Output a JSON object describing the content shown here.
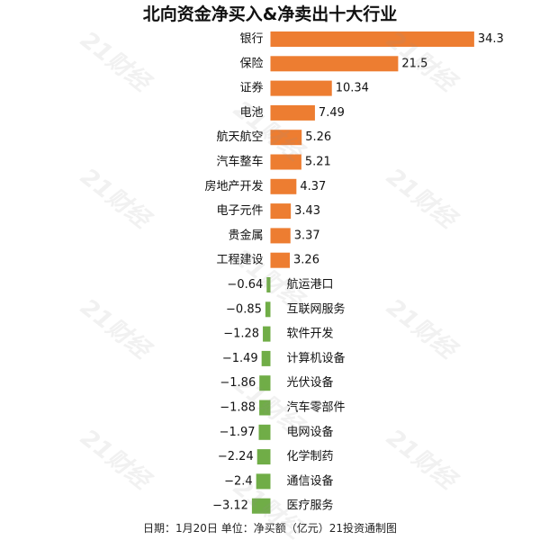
{
  "chart_data": {
    "type": "bar",
    "orientation": "horizontal",
    "title": "北向资金净买入&净卖出十大行业",
    "footer": "日期：1月20日 单位：净买额（亿元）21投资通制图",
    "watermark": "21财经",
    "xlabel": "",
    "ylabel": "",
    "grid": false,
    "legend": "none",
    "xlim": [
      -3.12,
      34.3
    ],
    "categories": [
      "银行",
      "保险",
      "证券",
      "电池",
      "航天航空",
      "汽车整车",
      "房地产开发",
      "电子元件",
      "贵金属",
      "工程建设",
      "航运港口",
      "互联网服务",
      "软件开发",
      "计算机设备",
      "光伏设备",
      "汽车零部件",
      "电网设备",
      "化学制药",
      "通信设备",
      "医疗服务"
    ],
    "values": [
      34.3,
      21.5,
      10.34,
      7.49,
      5.26,
      5.21,
      4.37,
      3.43,
      3.37,
      3.26,
      -0.64,
      -0.85,
      -1.28,
      -1.49,
      -1.86,
      -1.88,
      -1.97,
      -2.24,
      -2.4,
      -3.12
    ],
    "value_labels": [
      "34.3",
      "21.5",
      "10.34",
      "7.49",
      "5.26",
      "5.21",
      "4.37",
      "3.43",
      "3.37",
      "3.26",
      "−0.64",
      "−0.85",
      "−1.28",
      "−1.49",
      "−1.86",
      "−1.88",
      "−1.97",
      "−2.24",
      "−2.4",
      "−3.12"
    ],
    "colors": {
      "positive": "#ED7D31",
      "negative": "#70AD47"
    }
  }
}
